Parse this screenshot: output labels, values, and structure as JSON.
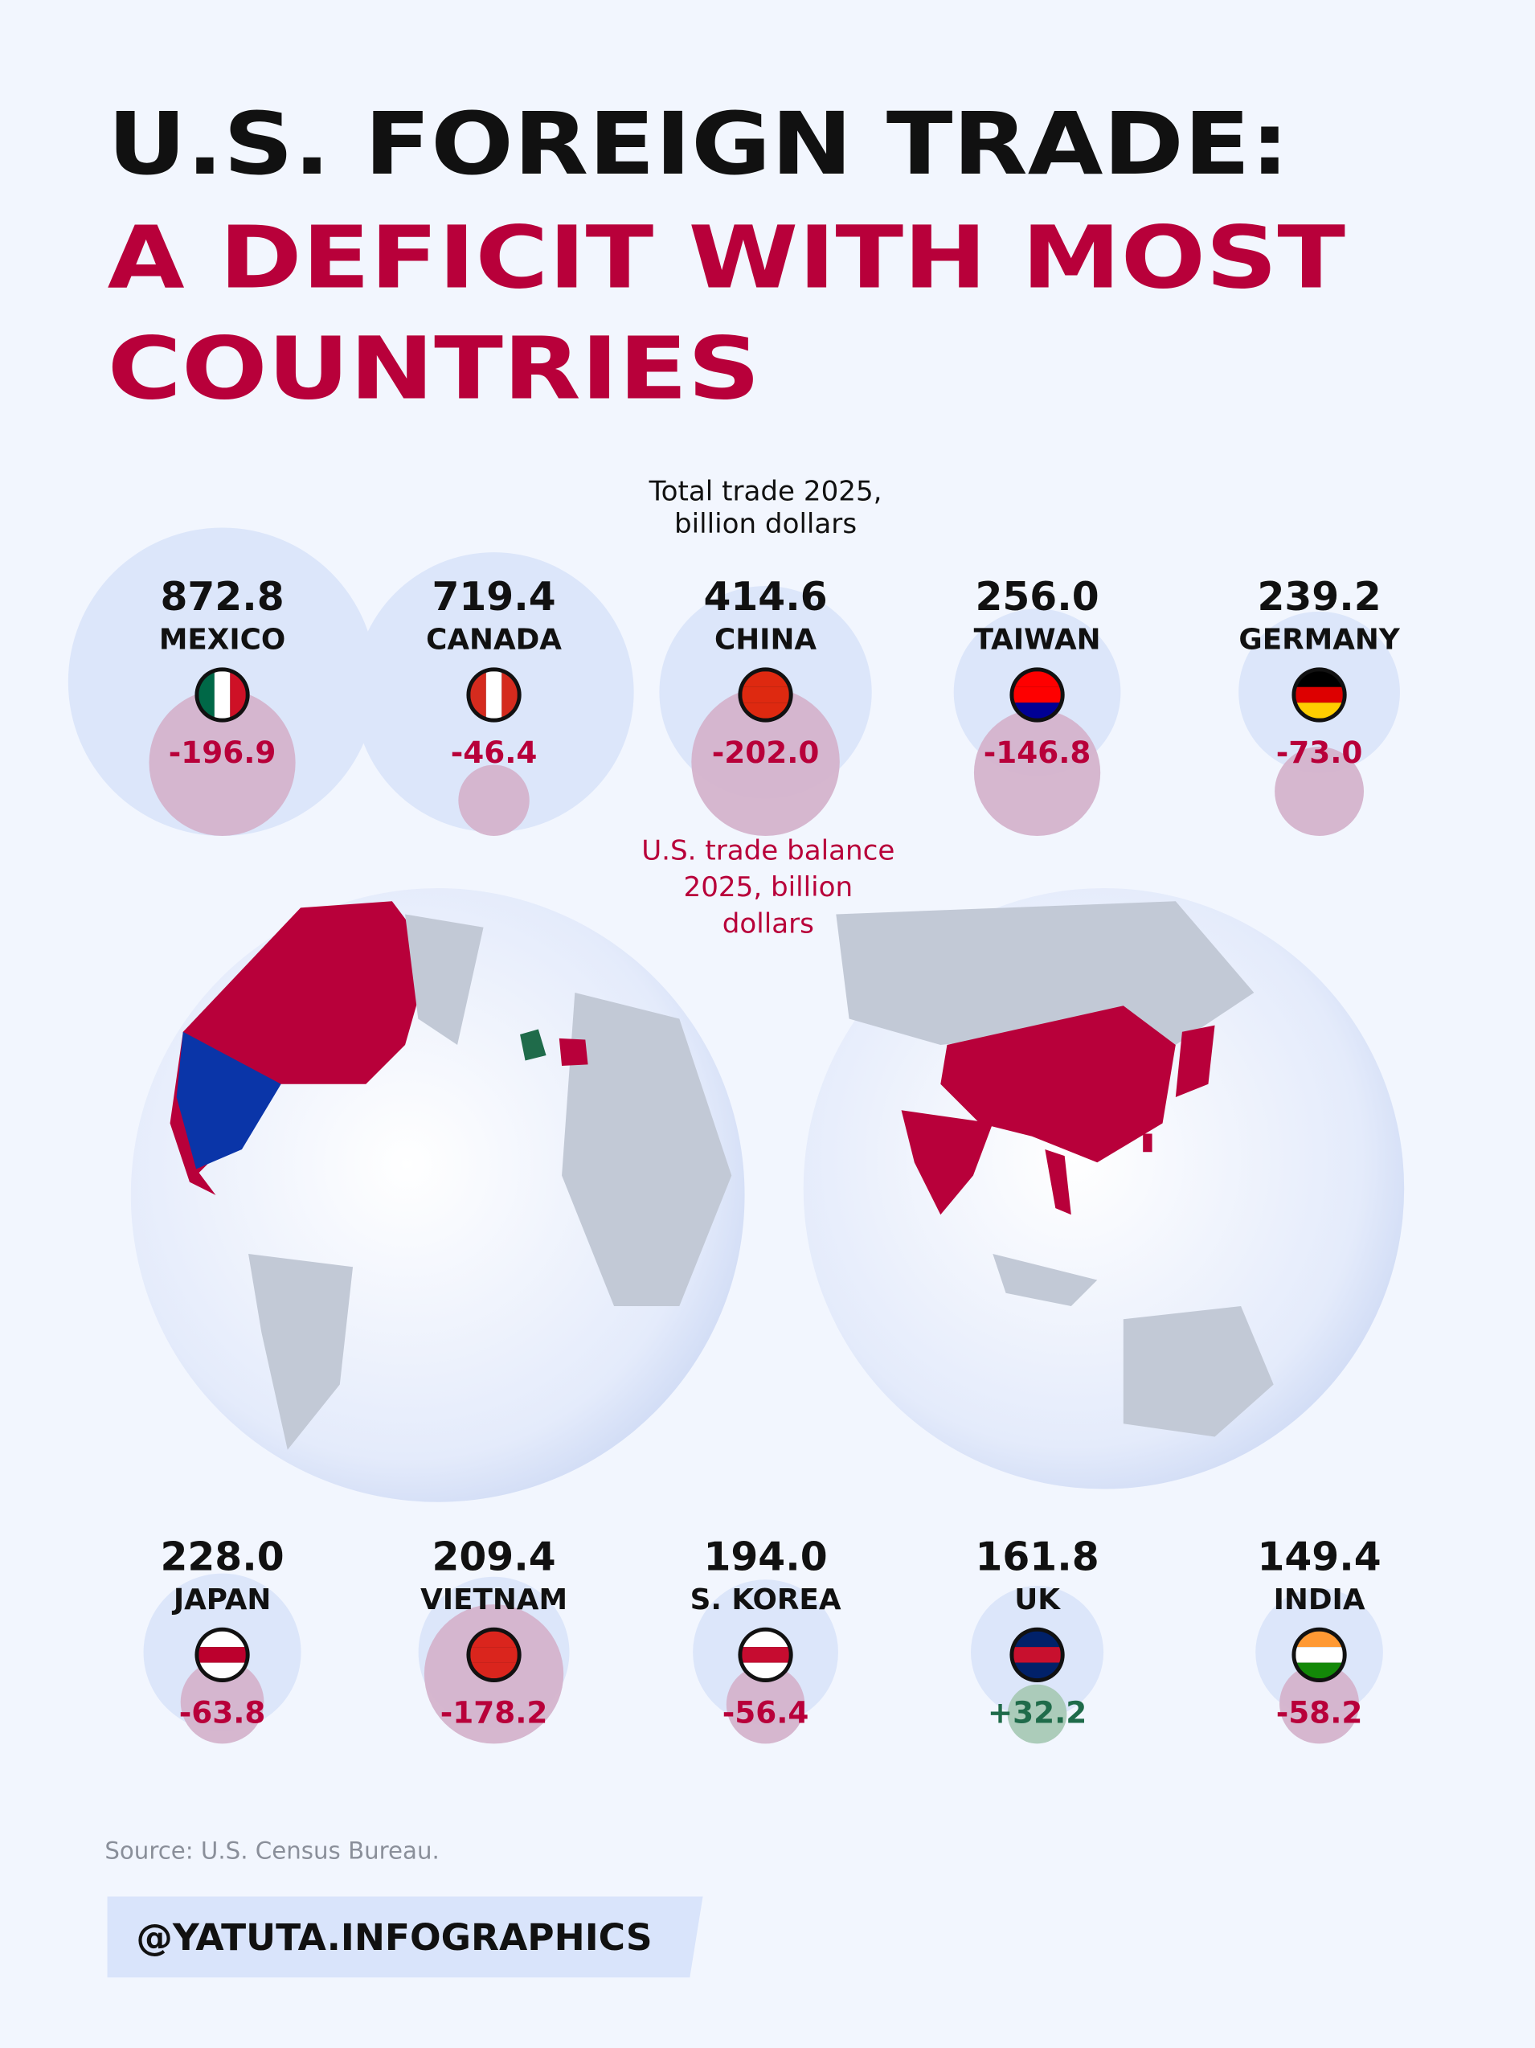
{
  "chart_data": {
    "type": "bubble",
    "title": [
      "U.S. FOREIGN TRADE:",
      "A DEFICIT WITH MOST",
      "COUNTRIES"
    ],
    "categories": [
      "MEXICO",
      "CANADA",
      "CHINA",
      "TAIWAN",
      "GERMANY",
      "JAPAN",
      "VIETNAM",
      "S. KOREA",
      "UK",
      "INDIA"
    ],
    "series": [
      {
        "name": [
          "Total trade 2025,",
          "billion dollars"
        ],
        "color": "#dce6fa",
        "values": [
          872.8,
          719.4,
          414.6,
          256.0,
          239.2,
          228.0,
          209.4,
          194.0,
          161.8,
          149.4
        ],
        "value_labels": [
          "872.8",
          "719.4",
          "414.6",
          "256.0",
          "239.2",
          "228.0",
          "209.4",
          "194.0",
          "161.8",
          "149.4"
        ]
      },
      {
        "name": [
          "U.S. trade balance",
          "2025, billion",
          "dollars"
        ],
        "color": "#b8003a",
        "values": [
          -196.9,
          -46.4,
          -202.0,
          -146.8,
          -73.0,
          -63.8,
          -178.2,
          -56.4,
          32.2,
          -58.2
        ],
        "value_labels": [
          "-196.9",
          "-46.4",
          "-202.0",
          "-146.8",
          "-73.0",
          "-63.8",
          "-178.2",
          "-56.4",
          "+32.2",
          "-58.2"
        ]
      }
    ],
    "source": "Source: U.S. Census Bureau.",
    "handle": "@YATUTA.INFOGRAPHICS"
  }
}
